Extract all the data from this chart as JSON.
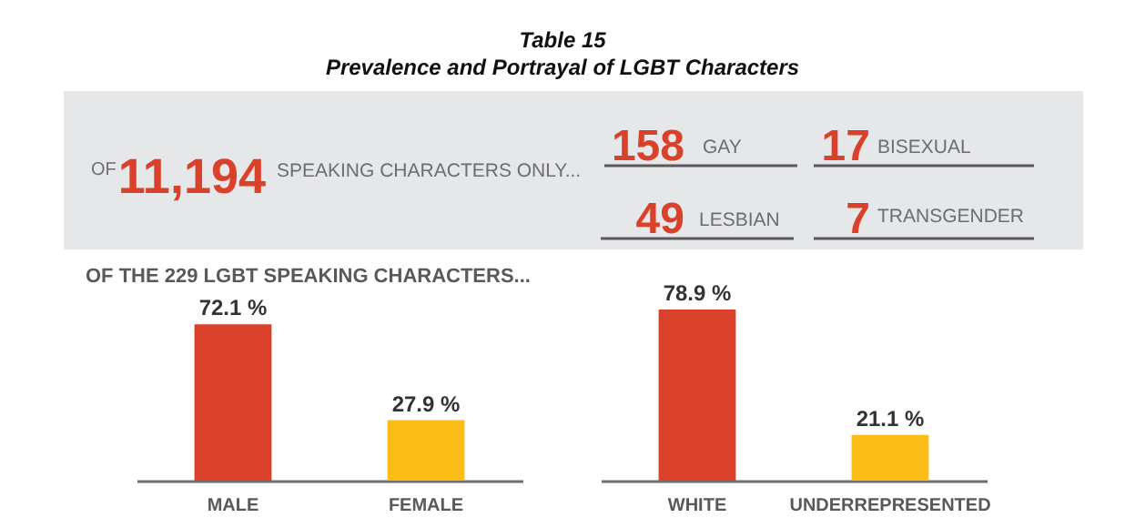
{
  "chart_data": [
    {
      "type": "other",
      "title": "Table 15",
      "subtitle": "Prevalence and Portrayal of LGBT Characters",
      "annotations": [
        "OF",
        "11,194",
        "SPEAKING CHARACTERS ONLY...",
        "158",
        "GAY",
        "17",
        "BISEXUAL",
        "49",
        "LESBIAN",
        "7",
        "TRANSGENDER"
      ]
    },
    {
      "type": "bar",
      "title": "OF THE 229 LGBT SPEAKING CHARACTERS...",
      "categories": [
        "MALE",
        "FEMALE"
      ],
      "values": [
        72.1,
        27.9
      ],
      "colors": [
        "#d9412b",
        "#fbbd16"
      ],
      "value_labels": [
        "72.1 %",
        "27.9 %"
      ]
    },
    {
      "type": "bar",
      "categories": [
        "WHITE",
        "UNDERREPRESENTED"
      ],
      "values": [
        78.9,
        21.1
      ],
      "colors": [
        "#d9412b",
        "#fbbd16"
      ],
      "value_labels": [
        "78.9 %",
        "21.1 %"
      ]
    }
  ]
}
